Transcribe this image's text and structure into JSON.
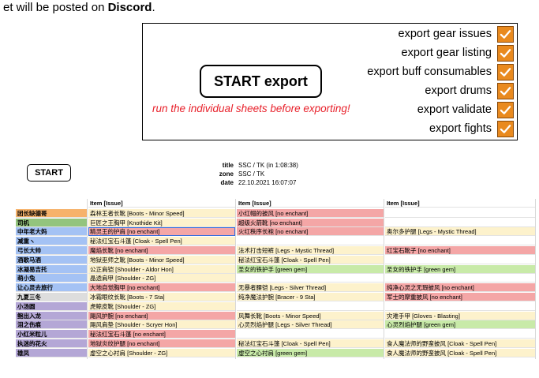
{
  "intro": {
    "text": "et will be posted on ",
    "bold": "Discord",
    "tail": "."
  },
  "export_panel": {
    "start_label": "START export",
    "warning": "run the individual sheets before exporting!",
    "options": [
      {
        "label": "export gear issues",
        "checked": true
      },
      {
        "label": "export gear listing",
        "checked": true
      },
      {
        "label": "export buff consumables",
        "checked": true
      },
      {
        "label": "export drums",
        "checked": true
      },
      {
        "label": "export validate",
        "checked": true
      },
      {
        "label": "export fights",
        "checked": true
      }
    ],
    "check_color": "#e98a1f"
  },
  "sheet": {
    "start_label": "START",
    "meta": [
      {
        "key": "title",
        "value": "SSC / TK (in 1:08:38)"
      },
      {
        "key": "zone",
        "value": "SSC / TK"
      },
      {
        "key": "date",
        "value": "22.10.2021 16:07:07"
      }
    ],
    "headers": [
      "Item [Issue]",
      "Item [Issue]",
      "Item [Issue]"
    ],
    "colors": {
      "red": "#f4a6a6",
      "yellow": "#fdf2cc",
      "green": "#c8eaa8",
      "white": "#ffffff",
      "orange": "#f6b26b",
      "green2": "#93c47d",
      "blue": "#a4c2f4",
      "purple": "#b4a7d6",
      "grey": "#dddddd"
    },
    "rows": [
      {
        "name": "团长缺德哥",
        "name_color": "orange",
        "cells": [
          {
            "text": "森林王者长靴 [Boots - Minor Speed]",
            "color": "yellow"
          },
          {
            "text": "小红帽的披风 [no enchant]",
            "color": "red"
          },
          {
            "text": "",
            "color": "white"
          }
        ]
      },
      {
        "name": "司机",
        "name_color": "green2",
        "cells": [
          {
            "text": "巨匠之王胸甲 [Knothide Kit]",
            "color": "yellow"
          },
          {
            "text": "超级火箭靴 [no enchant]",
            "color": "red"
          },
          {
            "text": "",
            "color": "white"
          }
        ]
      },
      {
        "name": "中年老大妈",
        "name_color": "blue",
        "cells": [
          {
            "text": "精灵王的护肩 [no enchant]",
            "color": "red",
            "selected": true
          },
          {
            "text": "火红秩序长袍 [no enchant]",
            "color": "red"
          },
          {
            "text": "奥尔多护腿 [Legs - Mystic Thread]",
            "color": "yellow"
          }
        ]
      },
      {
        "name": "减重ヽ",
        "name_color": "blue",
        "cells": [
          {
            "text": "秘法红宝石斗篷 [Cloak - Spell Pen]",
            "color": "yellow"
          },
          {
            "text": "",
            "color": "white"
          },
          {
            "text": "",
            "color": "white"
          }
        ]
      },
      {
        "name": "弓长大帅",
        "name_color": "blue",
        "cells": [
          {
            "text": "魔焰长靴 [no enchant]",
            "color": "red"
          },
          {
            "text": "法术打击短裤 [Legs - Mystic Thread]",
            "color": "yellow"
          },
          {
            "text": "红宝石靴子 [no enchant]",
            "color": "red"
          }
        ]
      },
      {
        "name": "酒歌马酒",
        "name_color": "blue",
        "cells": [
          {
            "text": "地狱巫师之靴 [Boots - Minor Speed]",
            "color": "yellow"
          },
          {
            "text": "秘法红宝石斗篷 [Cloak - Spell Pen]",
            "color": "yellow"
          },
          {
            "text": "",
            "color": "white"
          }
        ]
      },
      {
        "name": "冰凝易吉托",
        "name_color": "blue",
        "cells": [
          {
            "text": "公正肩铠 [Shoulder - Aldor Hon]",
            "color": "yellow"
          },
          {
            "text": "圣女的铁护手 [green gem]",
            "color": "green"
          },
          {
            "text": "圣女的铁护手 [green gem]",
            "color": "green"
          }
        ]
      },
      {
        "name": "萌小兔",
        "name_color": "blue",
        "cells": [
          {
            "text": "晶透肩甲 [Shoulder - ZG]",
            "color": "yellow"
          },
          {
            "text": "",
            "color": "white"
          },
          {
            "text": "",
            "color": "white"
          }
        ]
      },
      {
        "name": "让心灵去旅行",
        "name_color": "blue",
        "cells": [
          {
            "text": "大地自觉胸甲 [no enchant]",
            "color": "red"
          },
          {
            "text": "无暴者腰铠 [Legs - Silver Thread]",
            "color": "yellow"
          },
          {
            "text": "纯净心灵之无瑕披风 [no enchant]",
            "color": "red"
          }
        ]
      },
      {
        "name": "九夏三冬",
        "name_color": "grey",
        "cells": [
          {
            "text": "冰霜眼纹长靴 [Boots - 7 Sta]",
            "color": "yellow"
          },
          {
            "text": "纯净魔法护腕 [Bracer - 9 Sta]",
            "color": "yellow"
          },
          {
            "text": "军士的摩重披风 [no enchant]",
            "color": "red"
          }
        ]
      },
      {
        "name": "小汤圆",
        "name_color": "purple",
        "cells": [
          {
            "text": "虎鲸皮靴 [Shoulder - ZG]",
            "color": "yellow"
          },
          {
            "text": "",
            "color": "white"
          },
          {
            "text": "",
            "color": "white"
          }
        ]
      },
      {
        "name": "鲍出入龙",
        "name_color": "purple",
        "cells": [
          {
            "text": "飓风护腕 [no enchant]",
            "color": "red"
          },
          {
            "text": "风舞长靴 [Boots - Minor Speed]",
            "color": "yellow"
          },
          {
            "text": "灾难手甲 [Gloves - Blasting]",
            "color": "yellow"
          }
        ]
      },
      {
        "name": "泪之伤痕",
        "name_color": "purple",
        "cells": [
          {
            "text": "飓风肩垫 [Shoulder - Scryer Hon]",
            "color": "yellow"
          },
          {
            "text": "心灵烈焰护腿 [Legs - Silver Thread]",
            "color": "yellow"
          },
          {
            "text": "心灵烈焰护腿 [green gem]",
            "color": "green"
          }
        ]
      },
      {
        "name": "小红米粒儿",
        "name_color": "purple",
        "cells": [
          {
            "text": "秘法红宝石斗篷 [no enchant]",
            "color": "red"
          },
          {
            "text": "",
            "color": "white"
          },
          {
            "text": "",
            "color": "white"
          }
        ]
      },
      {
        "name": "执迷的花火",
        "name_color": "purple",
        "cells": [
          {
            "text": "地狱炎纹护腿 [no enchant]",
            "color": "red"
          },
          {
            "text": "秘法红宝石斗篷 [Cloak - Spell Pen]",
            "color": "yellow"
          },
          {
            "text": "食人魔法师的野蛮披风 [Cloak - Spell Pen]",
            "color": "yellow"
          }
        ]
      },
      {
        "name": "雄凤",
        "name_color": "purple",
        "cells": [
          {
            "text": "虚空之心衬肩 [Shoulder - ZG]",
            "color": "yellow"
          },
          {
            "text": "虚空之心衬肩 [green gem]",
            "color": "green"
          },
          {
            "text": "食人魔法师的野蛮披风 [Cloak - Spell Pen]",
            "color": "yellow"
          }
        ]
      }
    ]
  }
}
